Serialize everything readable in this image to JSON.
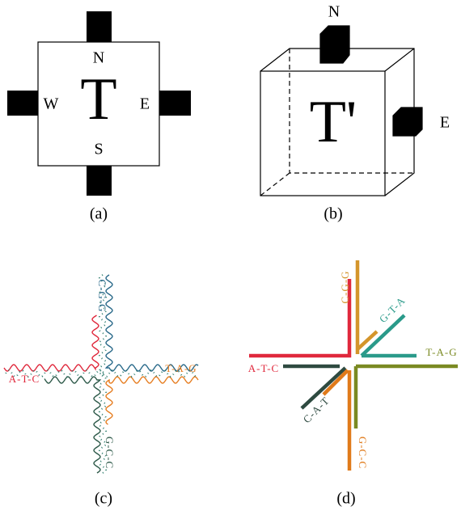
{
  "panels": [
    {
      "caption": "(a)",
      "center": "T",
      "labels": [
        "N",
        "W",
        "E",
        "S"
      ]
    },
    {
      "caption": "(b)",
      "center": "T'",
      "labels": [
        "N",
        "E"
      ]
    },
    {
      "caption": "(c)",
      "labels": [
        "C-G-G",
        "A-T-C",
        "T-A-G",
        "G-C-C"
      ]
    },
    {
      "caption": "(d)",
      "labels": [
        "C-G-G",
        "G-T-A",
        "A-T-C",
        "T-A-G",
        "C-A-T",
        "G-C-C"
      ]
    }
  ]
}
